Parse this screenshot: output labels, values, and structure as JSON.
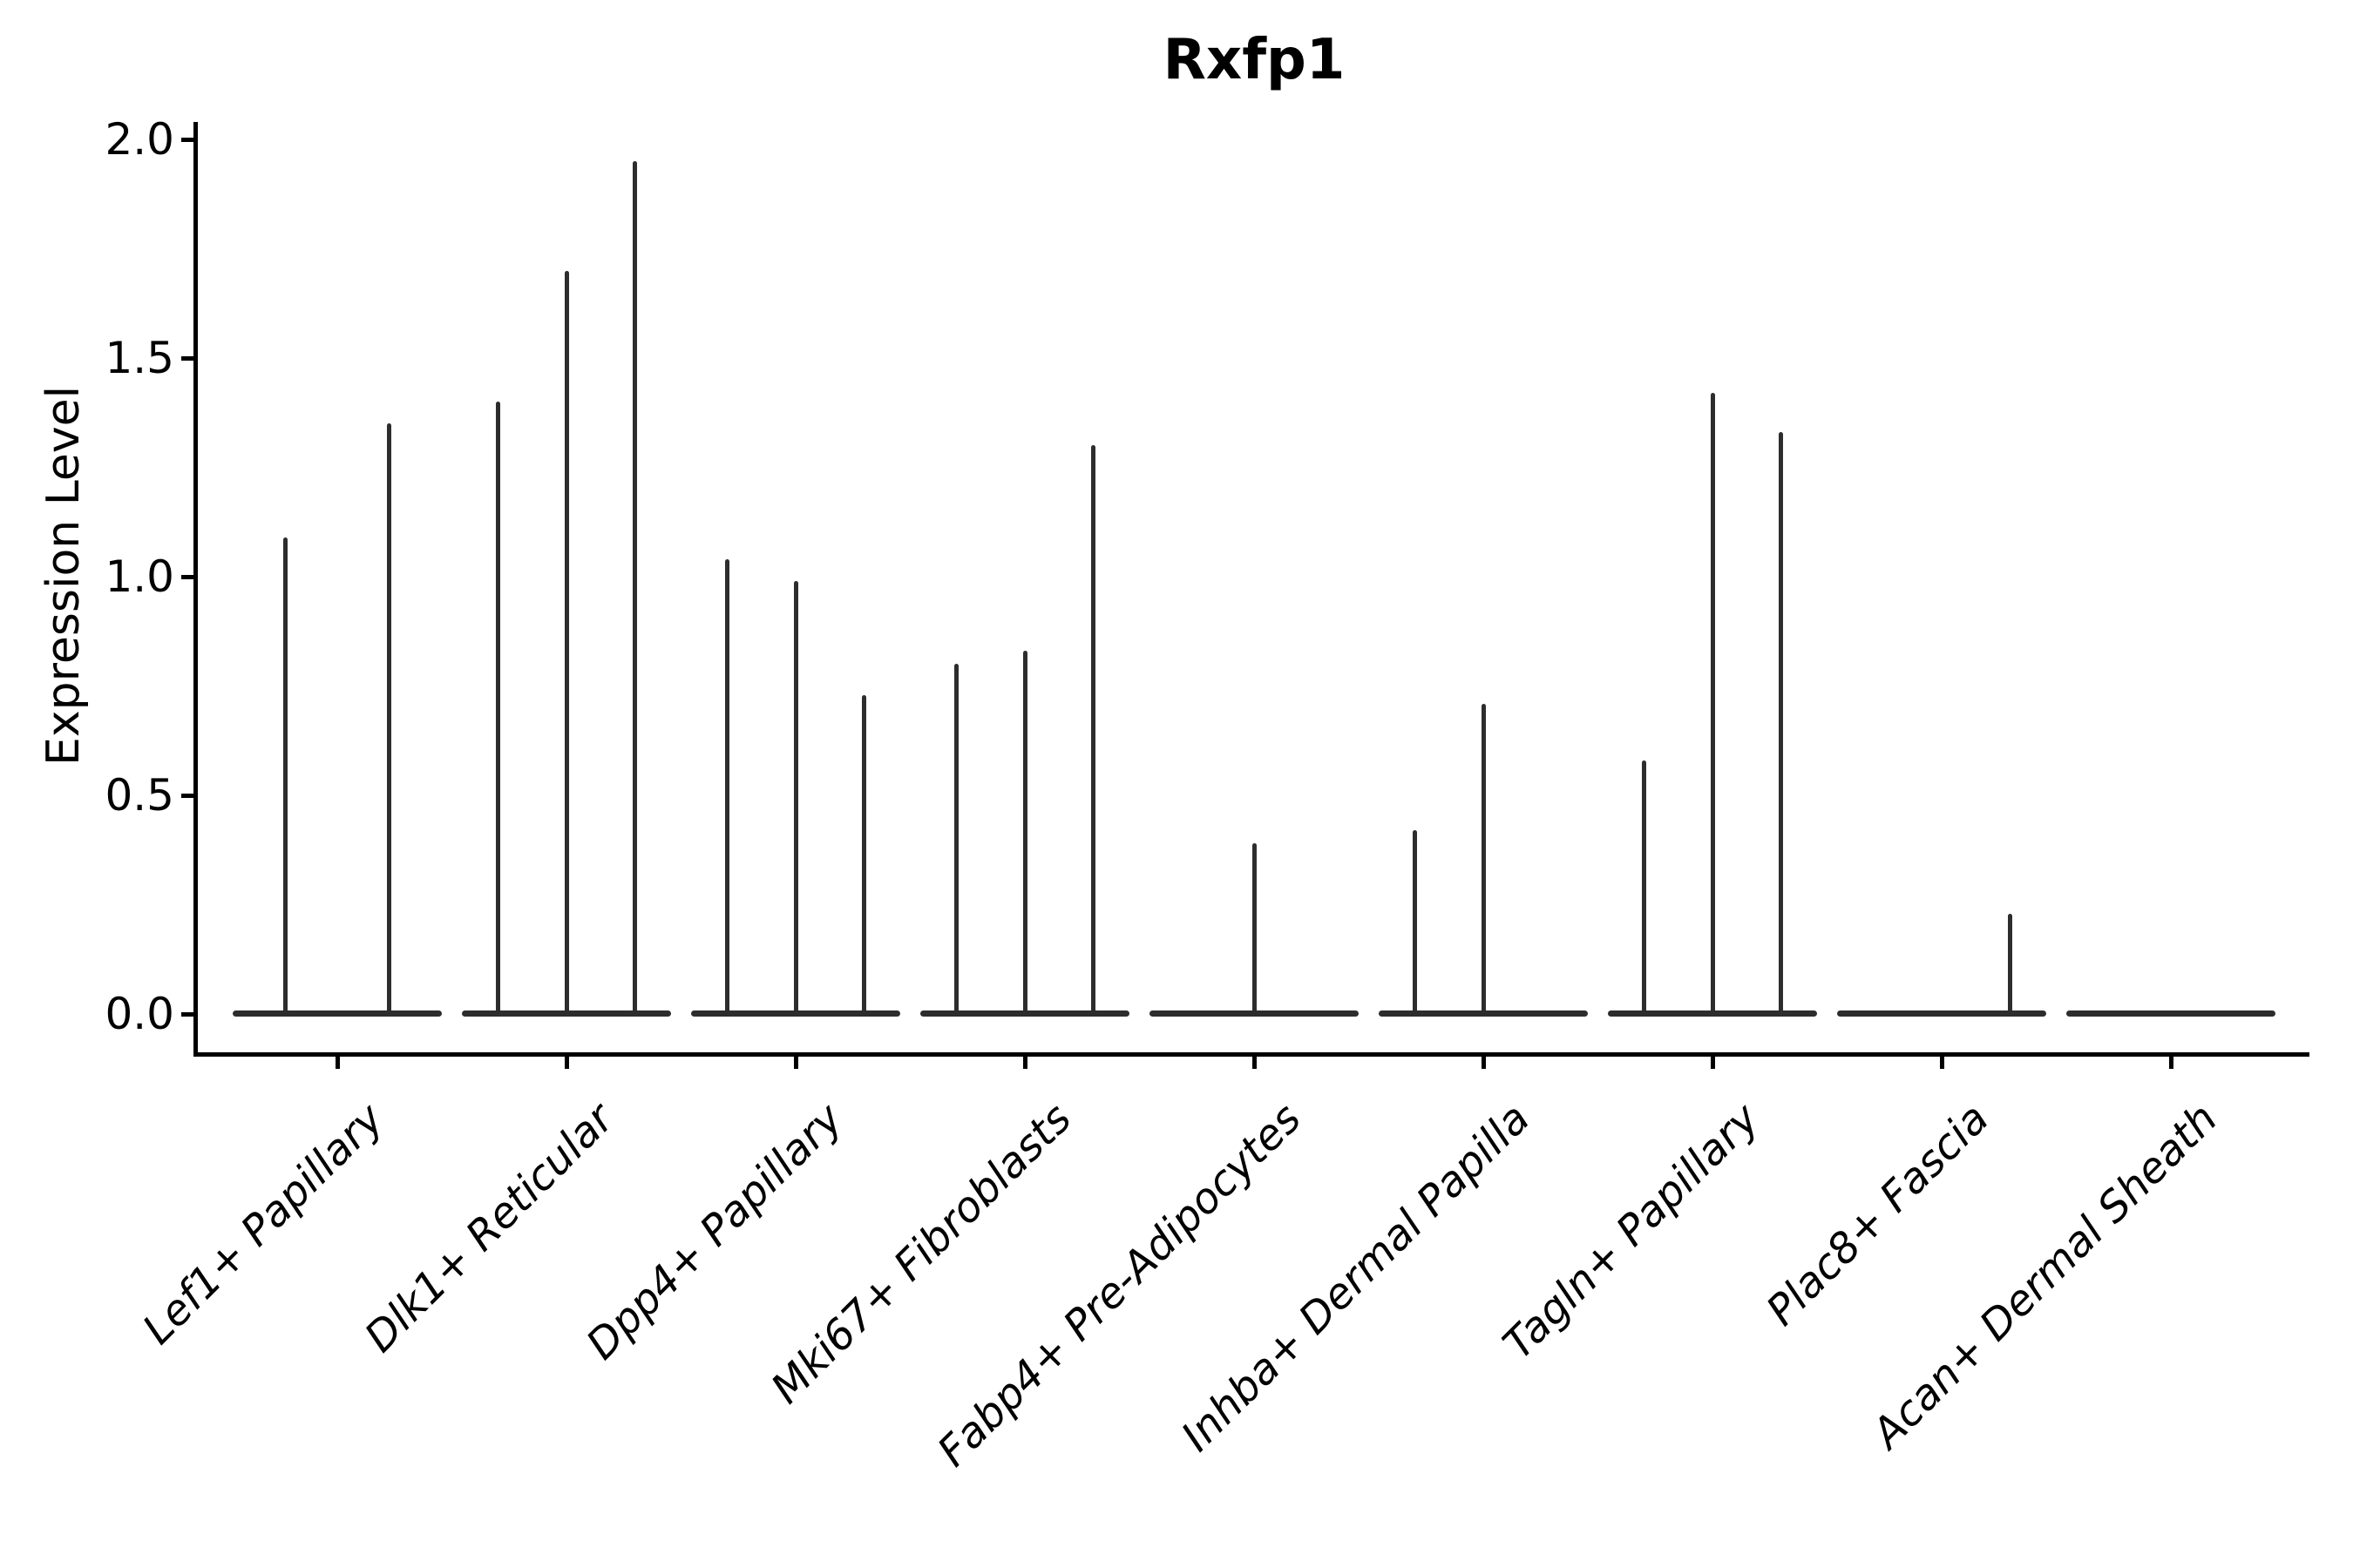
{
  "chart_data": {
    "type": "violin",
    "title": "Rxfp1",
    "ylabel": "Expression Level",
    "xlabel": "",
    "ylim": [
      0,
      2
    ],
    "yticks": [
      "0.0",
      "0.5",
      "1.0",
      "1.5",
      "2.0"
    ],
    "ytick_values": [
      0,
      0.5,
      1.0,
      1.5,
      2.0
    ],
    "grid": "off",
    "legend": "none",
    "categories": [
      "Lef1+ Papillary",
      "Dlk1+ Reticular",
      "Dpp4+ Papillary",
      "Mki67+ Fibroblasts",
      "Fabp4+ Pre-Adipocytes",
      "Inhba+ Dermal Papilla",
      "Tagln+ Papillary",
      "Plac8+ Fascia",
      "Acan+ Dermal Sheath"
    ],
    "groups": [
      {
        "category": "Lef1+ Papillary",
        "violins": [
          {
            "offset": -0.225,
            "max": 1.09
          },
          {
            "offset": 0.225,
            "max": 1.35
          }
        ]
      },
      {
        "category": "Dlk1+ Reticular",
        "violins": [
          {
            "offset": -0.3,
            "max": 1.4
          },
          {
            "offset": 0,
            "max": 1.7
          },
          {
            "offset": 0.3,
            "max": 1.95
          }
        ]
      },
      {
        "category": "Dpp4+ Papillary",
        "violins": [
          {
            "offset": -0.3,
            "max": 1.04
          },
          {
            "offset": 0,
            "max": 0.99
          },
          {
            "offset": 0.3,
            "max": 0.73
          }
        ]
      },
      {
        "category": "Mki67+ Fibroblasts",
        "violins": [
          {
            "offset": -0.3,
            "max": 0.8
          },
          {
            "offset": 0,
            "max": 0.83
          },
          {
            "offset": 0.3,
            "max": 1.3
          }
        ]
      },
      {
        "category": "Fabp4+ Pre-Adipocytes",
        "violins": [
          {
            "offset": 0,
            "max": 0.39
          }
        ]
      },
      {
        "category": "Inhba+ Dermal Papilla",
        "violins": [
          {
            "offset": -0.3,
            "max": 0.42
          },
          {
            "offset": 0,
            "max": 0.71
          }
        ]
      },
      {
        "category": "Tagln+ Papillary",
        "violins": [
          {
            "offset": -0.3,
            "max": 0.58
          },
          {
            "offset": 0,
            "max": 1.42
          },
          {
            "offset": 0.3,
            "max": 1.33
          }
        ]
      },
      {
        "category": "Plac8+ Fascia",
        "violins": [
          {
            "offset": 0.3,
            "max": 0.23
          }
        ]
      },
      {
        "category": "Acan+ Dermal Sheath",
        "violins": []
      }
    ],
    "style": {
      "violin_color": "#2d2d2d",
      "axis_color": "#000000",
      "background": "#ffffff"
    }
  }
}
